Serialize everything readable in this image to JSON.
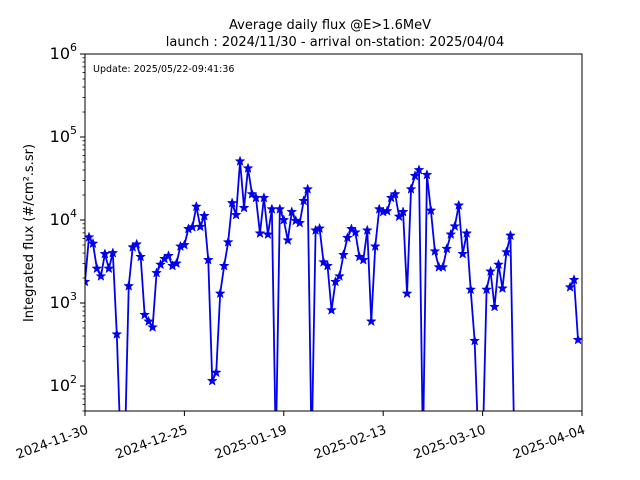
{
  "chart_data": {
    "type": "line",
    "title": "Average daily flux @E>1.6MeV",
    "subtitle": "launch : 2024/11/30 - arrival on-station: 2025/04/04",
    "annotation": "Update: 2025/05/22-09:41:36",
    "ylabel": "Integrated flux (#/cm².s.sr)",
    "y_scale": "log",
    "ylim": [
      50,
      1000000
    ],
    "y_ticks": [
      100,
      1000,
      10000,
      100000,
      1000000
    ],
    "x_type": "date",
    "xlim": [
      "2024-11-30",
      "2025-04-04"
    ],
    "x_tick_labels": [
      "2024-11-30",
      "2024-12-25",
      "2025-01-19",
      "2025-02-13",
      "2025-03-10",
      "2025-04-04"
    ],
    "grid": false,
    "series": [
      {
        "color": "#0000ee",
        "marker": "star",
        "points": [
          [
            "2024-11-30",
            1800
          ],
          [
            "2024-12-01",
            6200
          ],
          [
            "2024-12-02",
            5200
          ],
          [
            "2024-12-03",
            2600
          ],
          [
            "2024-12-04",
            2100
          ],
          [
            "2024-12-05",
            3900
          ],
          [
            "2024-12-06",
            2600
          ],
          [
            "2024-12-07",
            4000
          ],
          [
            "2024-12-08",
            420
          ],
          [
            "2024-12-09",
            null
          ],
          [
            "2024-12-10",
            null
          ],
          [
            "2024-12-11",
            1600
          ],
          [
            "2024-12-12",
            4700
          ],
          [
            "2024-12-13",
            5100
          ],
          [
            "2024-12-14",
            3600
          ],
          [
            "2024-12-15",
            720
          ],
          [
            "2024-12-16",
            600
          ],
          [
            "2024-12-17",
            510
          ],
          [
            "2024-12-18",
            2300
          ],
          [
            "2024-12-19",
            2900
          ],
          [
            "2024-12-20",
            3400
          ],
          [
            "2024-12-21",
            3700
          ],
          [
            "2024-12-22",
            2800
          ],
          [
            "2024-12-23",
            3000
          ],
          [
            "2024-12-24",
            4800
          ],
          [
            "2024-12-25",
            5000
          ],
          [
            "2024-12-26",
            7800
          ],
          [
            "2024-12-27",
            8200
          ],
          [
            "2024-12-28",
            14500
          ],
          [
            "2024-12-29",
            8300
          ],
          [
            "2024-12-30",
            11200
          ],
          [
            "2024-12-31",
            3300
          ],
          [
            "2025-01-01",
            115
          ],
          [
            "2025-01-02",
            145
          ],
          [
            "2025-01-03",
            1300
          ],
          [
            "2025-01-04",
            2800
          ],
          [
            "2025-01-05",
            5400
          ],
          [
            "2025-01-06",
            16000
          ],
          [
            "2025-01-07",
            11500
          ],
          [
            "2025-01-08",
            51000
          ],
          [
            "2025-01-09",
            14000
          ],
          [
            "2025-01-10",
            42000
          ],
          [
            "2025-01-11",
            20500
          ],
          [
            "2025-01-12",
            18500
          ],
          [
            "2025-01-13",
            6900
          ],
          [
            "2025-01-14",
            18500
          ],
          [
            "2025-01-15",
            6700
          ],
          [
            "2025-01-16",
            13500
          ],
          [
            "2025-01-17",
            null
          ],
          [
            "2025-01-18",
            13500
          ],
          [
            "2025-01-19",
            10000
          ],
          [
            "2025-01-20",
            5700
          ],
          [
            "2025-01-21",
            12500
          ],
          [
            "2025-01-22",
            9800
          ],
          [
            "2025-01-23",
            9200
          ],
          [
            "2025-01-24",
            17000
          ],
          [
            "2025-01-25",
            23500
          ],
          [
            "2025-01-26",
            null
          ],
          [
            "2025-01-27",
            7500
          ],
          [
            "2025-01-28",
            7900
          ],
          [
            "2025-01-29",
            3100
          ],
          [
            "2025-01-30",
            2800
          ],
          [
            "2025-01-31",
            820
          ],
          [
            "2025-02-01",
            1800
          ],
          [
            "2025-02-02",
            2100
          ],
          [
            "2025-02-03",
            3800
          ],
          [
            "2025-02-04",
            6100
          ],
          [
            "2025-02-05",
            7800
          ],
          [
            "2025-02-06",
            7100
          ],
          [
            "2025-02-07",
            3600
          ],
          [
            "2025-02-08",
            3300
          ],
          [
            "2025-02-09",
            7500
          ],
          [
            "2025-02-10",
            600
          ],
          [
            "2025-02-11",
            4800
          ],
          [
            "2025-02-12",
            13500
          ],
          [
            "2025-02-13",
            12500
          ],
          [
            "2025-02-14",
            12800
          ],
          [
            "2025-02-15",
            18500
          ],
          [
            "2025-02-16",
            20500
          ],
          [
            "2025-02-17",
            11000
          ],
          [
            "2025-02-18",
            12500
          ],
          [
            "2025-02-19",
            1300
          ],
          [
            "2025-02-20",
            23500
          ],
          [
            "2025-02-21",
            34000
          ],
          [
            "2025-02-22",
            40000
          ],
          [
            "2025-02-23",
            null
          ],
          [
            "2025-02-24",
            35000
          ],
          [
            "2025-02-25",
            13000
          ],
          [
            "2025-02-26",
            4200
          ],
          [
            "2025-02-27",
            2700
          ],
          [
            "2025-02-28",
            2700
          ],
          [
            "2025-03-01",
            4500
          ],
          [
            "2025-03-02",
            6700
          ],
          [
            "2025-03-03",
            8400
          ],
          [
            "2025-03-04",
            15000
          ],
          [
            "2025-03-05",
            3900
          ],
          [
            "2025-03-06",
            6900
          ],
          [
            "2025-03-07",
            1450
          ],
          [
            "2025-03-08",
            350
          ],
          [
            "2025-03-09",
            null
          ],
          [
            "2025-03-10",
            null
          ],
          [
            "2025-03-11",
            1450
          ],
          [
            "2025-03-12",
            2400
          ],
          [
            "2025-03-13",
            900
          ],
          [
            "2025-03-14",
            2900
          ],
          [
            "2025-03-15",
            1500
          ],
          [
            "2025-03-16",
            4100
          ],
          [
            "2025-03-17",
            6500
          ],
          [
            "2025-03-18",
            null
          ],
          [
            "2025-04-01",
            1550
          ],
          [
            "2025-04-02",
            1900
          ],
          [
            "2025-04-03",
            360
          ]
        ]
      }
    ]
  }
}
